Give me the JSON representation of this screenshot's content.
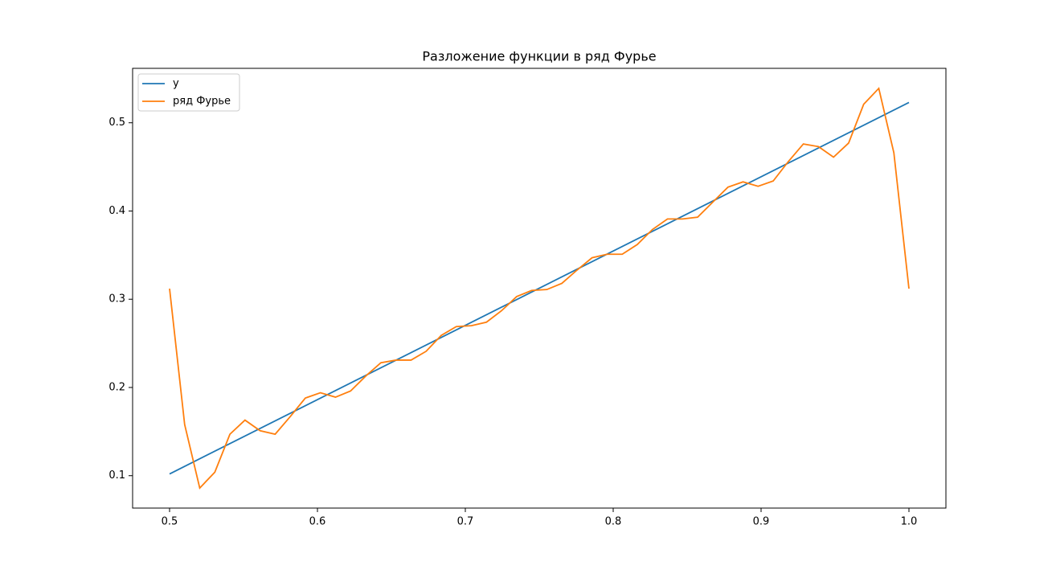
{
  "chart_data": {
    "type": "line",
    "title": "Разложение функции в ряд Фурье",
    "series": [
      {
        "name": "y",
        "color": "#1f77b4",
        "x": [
          0.5,
          1.0
        ],
        "values": [
          0.102,
          0.523
        ]
      },
      {
        "name": "ряд Фурье",
        "color": "#ff7f0e",
        "x": [
          0.5,
          0.5102,
          0.5204,
          0.5306,
          0.5408,
          0.551,
          0.5612,
          0.5714,
          0.5816,
          0.5918,
          0.602,
          0.6122,
          0.6224,
          0.6327,
          0.6429,
          0.6531,
          0.6633,
          0.6735,
          0.6837,
          0.6939,
          0.7041,
          0.7143,
          0.7245,
          0.7347,
          0.7449,
          0.7551,
          0.7653,
          0.7755,
          0.7857,
          0.7959,
          0.8061,
          0.8163,
          0.8265,
          0.8367,
          0.8469,
          0.8571,
          0.8673,
          0.8776,
          0.8878,
          0.898,
          0.9082,
          0.9184,
          0.9286,
          0.9388,
          0.949,
          0.9592,
          0.9694,
          0.9796,
          0.9898,
          1.0
        ],
        "values": [
          0.312,
          0.158,
          0.086,
          0.104,
          0.147,
          0.163,
          0.151,
          0.147,
          0.167,
          0.188,
          0.194,
          0.189,
          0.196,
          0.213,
          0.228,
          0.231,
          0.231,
          0.241,
          0.259,
          0.269,
          0.27,
          0.274,
          0.287,
          0.303,
          0.31,
          0.311,
          0.318,
          0.333,
          0.347,
          0.351,
          0.351,
          0.362,
          0.379,
          0.391,
          0.391,
          0.393,
          0.41,
          0.427,
          0.433,
          0.428,
          0.434,
          0.456,
          0.476,
          0.473,
          0.461,
          0.477,
          0.521,
          0.539,
          0.466,
          0.312
        ]
      }
    ],
    "xlim": [
      0.475,
      1.025
    ],
    "ylim": [
      0.0633,
      0.5617
    ],
    "xticks": [
      0.5,
      0.6,
      0.7,
      0.8,
      0.9,
      {
        "value": 1,
        "label": "1.0"
      }
    ],
    "yticks": [
      0.1,
      0.2,
      0.3,
      0.4,
      0.5
    ],
    "legend": "upper left"
  }
}
